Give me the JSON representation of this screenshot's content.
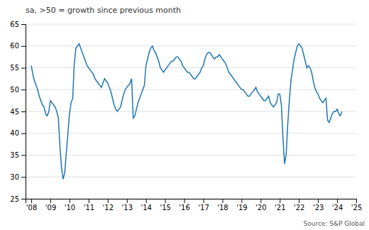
{
  "chart_data": {
    "type": "line",
    "title": "sa, >50 = growth since previous month",
    "annotations": [
      "Source: S&P Global"
    ],
    "x": [
      2008,
      2008.0833333333333,
      2008.1666666666667,
      2008.25,
      2008.3333333333333,
      2008.4166666666667,
      2008.5,
      2008.5833333333333,
      2008.6666666666667,
      2008.75,
      2008.8333333333333,
      2008.9166666666667,
      2009,
      2009.0833333333333,
      2009.1666666666667,
      2009.25,
      2009.3333333333333,
      2009.4166666666667,
      2009.5,
      2009.5833333333333,
      2009.6666666666667,
      2009.75,
      2009.8333333333333,
      2009.9166666666667,
      2010,
      2010.0833333333333,
      2010.1666666666667,
      2010.25,
      2010.3333333333333,
      2010.4166666666667,
      2010.5,
      2010.5833333333333,
      2010.6666666666667,
      2010.75,
      2010.8333333333333,
      2010.9166666666667,
      2011,
      2011.0833333333333,
      2011.1666666666667,
      2011.25,
      2011.3333333333333,
      2011.4166666666667,
      2011.5,
      2011.5833333333333,
      2011.6666666666667,
      2011.75,
      2011.8333333333333,
      2011.9166666666667,
      2012,
      2012.0833333333333,
      2012.1666666666667,
      2012.25,
      2012.3333333333333,
      2012.4166666666667,
      2012.5,
      2012.5833333333333,
      2012.6666666666667,
      2012.75,
      2012.8333333333333,
      2012.9166666666667,
      2013,
      2013.0833333333333,
      2013.1666666666667,
      2013.25,
      2013.3333333333333,
      2013.4166666666667,
      2013.5,
      2013.5833333333333,
      2013.6666666666667,
      2013.75,
      2013.8333333333333,
      2013.9166666666667,
      2014,
      2014.0833333333333,
      2014.1666666666667,
      2014.25,
      2014.3333333333333,
      2014.4166666666667,
      2014.5,
      2014.5833333333333,
      2014.6666666666667,
      2014.75,
      2014.8333333333333,
      2014.9166666666667,
      2015,
      2015.0833333333333,
      2015.1666666666667,
      2015.25,
      2015.3333333333333,
      2015.4166666666667,
      2015.5,
      2015.5833333333333,
      2015.6666666666667,
      2015.75,
      2015.8333333333333,
      2015.9166666666667,
      2016,
      2016.0833333333333,
      2016.1666666666667,
      2016.25,
      2016.3333333333333,
      2016.4166666666667,
      2016.5,
      2016.5833333333333,
      2016.6666666666667,
      2016.75,
      2016.8333333333333,
      2016.9166666666667,
      2017,
      2017.0833333333333,
      2017.1666666666667,
      2017.25,
      2017.3333333333333,
      2017.4166666666667,
      2017.5,
      2017.5833333333333,
      2017.6666666666667,
      2017.75,
      2017.8333333333333,
      2017.9166666666667,
      2018,
      2018.0833333333333,
      2018.1666666666667,
      2018.25,
      2018.3333333333333,
      2018.4166666666667,
      2018.5,
      2018.5833333333333,
      2018.6666666666667,
      2018.75,
      2018.8333333333333,
      2018.9166666666667,
      2019,
      2019.0833333333333,
      2019.1666666666667,
      2019.25,
      2019.3333333333333,
      2019.4166666666667,
      2019.5,
      2019.5833333333333,
      2019.6666666666667,
      2019.75,
      2019.8333333333333,
      2019.9166666666667,
      2020,
      2020.0833333333333,
      2020.1666666666667,
      2020.25,
      2020.3333333333333,
      2020.4166666666667,
      2020.5,
      2020.5833333333333,
      2020.6666666666667,
      2020.75,
      2020.8333333333333,
      2020.9166666666667,
      2021,
      2021.0833333333333,
      2021.1666666666667,
      2021.25,
      2021.3333333333333,
      2021.4166666666667,
      2021.5,
      2021.5833333333333,
      2021.6666666666667,
      2021.75,
      2021.8333333333333,
      2021.9166666666667,
      2022,
      2022.0833333333333,
      2022.1666666666667,
      2022.25,
      2022.3333333333333,
      2022.4166666666667,
      2022.5,
      2022.5833333333333,
      2022.6666666666667,
      2022.75,
      2022.8333333333333,
      2022.9166666666667,
      2023,
      2023.0833333333333,
      2023.1666666666667,
      2023.25,
      2023.3333333333333,
      2023.4166666666667,
      2023.5,
      2023.5833333333333,
      2023.6666666666667,
      2023.75,
      2023.8333333333333,
      2023.9166666666667,
      2024,
      2024.0833333333333,
      2024.1666666666667,
      2024.25
    ],
    "values": [
      55.5,
      53.5,
      52.0,
      51.0,
      50.0,
      48.5,
      47.5,
      46.5,
      46.0,
      44.5,
      44.0,
      45.0,
      47.5,
      47.0,
      46.5,
      46.0,
      45.0,
      43.5,
      37.0,
      32.0,
      29.5,
      31.0,
      35.5,
      40.0,
      44.5,
      47.0,
      48.0,
      56.0,
      59.5,
      60.0,
      60.5,
      59.5,
      58.5,
      57.5,
      56.5,
      55.5,
      55.0,
      54.5,
      54.0,
      53.5,
      52.5,
      52.0,
      51.5,
      51.0,
      50.5,
      51.5,
      52.5,
      52.0,
      51.5,
      50.5,
      49.5,
      48.0,
      46.5,
      45.5,
      45.0,
      45.5,
      46.0,
      47.5,
      49.0,
      50.0,
      50.5,
      51.0,
      51.5,
      52.5,
      43.5,
      44.0,
      45.5,
      47.0,
      48.0,
      49.0,
      50.0,
      51.0,
      55.5,
      57.0,
      58.5,
      59.5,
      60.0,
      59.0,
      58.5,
      57.5,
      56.5,
      55.0,
      54.5,
      54.0,
      54.5,
      55.0,
      55.5,
      56.0,
      56.5,
      56.5,
      57.0,
      57.5,
      57.5,
      57.0,
      56.5,
      55.5,
      55.0,
      54.5,
      54.0,
      54.0,
      53.5,
      53.0,
      52.5,
      52.5,
      53.0,
      53.5,
      54.0,
      55.0,
      55.5,
      57.0,
      58.0,
      58.5,
      58.5,
      58.0,
      57.5,
      57.0,
      57.5,
      57.5,
      58.0,
      57.5,
      57.0,
      56.5,
      56.0,
      55.0,
      54.0,
      53.5,
      53.0,
      52.5,
      52.0,
      51.5,
      51.0,
      50.5,
      50.0,
      50.0,
      49.5,
      49.0,
      48.5,
      48.5,
      49.0,
      49.5,
      50.0,
      50.5,
      49.5,
      49.0,
      48.5,
      48.0,
      47.5,
      47.5,
      48.0,
      48.5,
      47.0,
      46.5,
      46.0,
      46.5,
      47.0,
      49.0,
      49.0,
      46.5,
      39.0,
      33.0,
      35.0,
      42.0,
      47.5,
      52.0,
      54.5,
      57.0,
      58.5,
      60.0,
      60.5,
      60.0,
      59.5,
      58.0,
      56.5,
      55.0,
      55.5,
      55.0,
      54.0,
      52.0,
      50.5,
      49.5,
      49.0,
      48.0,
      47.5,
      47.0,
      47.5,
      48.0,
      43.0,
      42.5,
      43.5,
      44.5,
      45.0,
      45.0,
      45.5,
      44.5,
      44.0,
      45.0
    ],
    "xlim": [
      2007.7,
      2025
    ],
    "xticks": [
      {
        "value": 2008,
        "label": "'08"
      },
      {
        "value": 2009,
        "label": "'09"
      },
      {
        "value": 2010,
        "label": "'10"
      },
      {
        "value": 2011,
        "label": "'11"
      },
      {
        "value": 2012,
        "label": "'12"
      },
      {
        "value": 2013,
        "label": "'13"
      },
      {
        "value": 2014,
        "label": "'14"
      },
      {
        "value": 2015,
        "label": "'15"
      },
      {
        "value": 2016,
        "label": "'16"
      },
      {
        "value": 2017,
        "label": "'17"
      },
      {
        "value": 2018,
        "label": "'18"
      },
      {
        "value": 2019,
        "label": "'19"
      },
      {
        "value": 2020,
        "label": "'20"
      },
      {
        "value": 2021,
        "label": "'21"
      },
      {
        "value": 2022,
        "label": "'22"
      },
      {
        "value": 2023,
        "label": "'23"
      },
      {
        "value": 2024,
        "label": "'24"
      },
      {
        "value": 2025,
        "label": "'25"
      }
    ],
    "ylim": [
      25,
      65
    ],
    "yticks": [
      25,
      30,
      35,
      40,
      45,
      50,
      55,
      60,
      65
    ],
    "grid": true
  }
}
